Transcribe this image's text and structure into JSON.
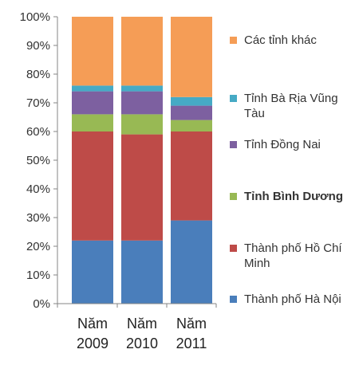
{
  "chart_data": {
    "type": "bar",
    "stacked": true,
    "percent": true,
    "categories": [
      "Năm 2009",
      "Năm 2010",
      "Năm 2011"
    ],
    "category_lines": [
      [
        "Năm",
        "2009"
      ],
      [
        "Năm",
        "2010"
      ],
      [
        "Năm",
        "2011"
      ]
    ],
    "ylim": [
      0,
      100
    ],
    "yticks": [
      "0%",
      "10%",
      "20%",
      "30%",
      "40%",
      "50%",
      "60%",
      "70%",
      "80%",
      "90%",
      "100%"
    ],
    "grid": false,
    "legend_position": "right",
    "series": [
      {
        "name": "Thành phố Hà Nội",
        "color": "#4a7ebb",
        "values": [
          22,
          22,
          29
        ]
      },
      {
        "name": "Thành phố Hồ Chí Minh",
        "color": "#be4b48",
        "values": [
          38,
          37,
          31
        ]
      },
      {
        "name": "Tỉnh Bình Dương",
        "color": "#98b954",
        "values": [
          6,
          7,
          4
        ]
      },
      {
        "name": "Tỉnh Đồng Nai",
        "color": "#7d60a0",
        "values": [
          8,
          8,
          5
        ]
      },
      {
        "name": "Tỉnh Bà Rịa Vũng Tàu",
        "color": "#46aac5",
        "values": [
          2,
          2,
          3
        ]
      },
      {
        "name": "Các tỉnh khác",
        "color": "#f59d56",
        "values": [
          24,
          24,
          28
        ]
      }
    ]
  },
  "legend": {
    "items": [
      {
        "label": "Các tỉnh khác",
        "color": "#f59d56",
        "bold": false
      },
      {
        "label": "Tỉnh Bà Rịa Vũng Tàu",
        "color": "#46aac5",
        "bold": false
      },
      {
        "label": "Tỉnh Đồng Nai",
        "color": "#7d60a0",
        "bold": false
      },
      {
        "label": "Tỉnh Bình Dương",
        "color": "#98b954",
        "bold": true
      },
      {
        "label": "Thành phố Hồ Chí Minh",
        "color": "#be4b48",
        "bold": false
      },
      {
        "label": "Thành phố Hà Nội",
        "color": "#4a7ebb",
        "bold": false
      }
    ]
  }
}
